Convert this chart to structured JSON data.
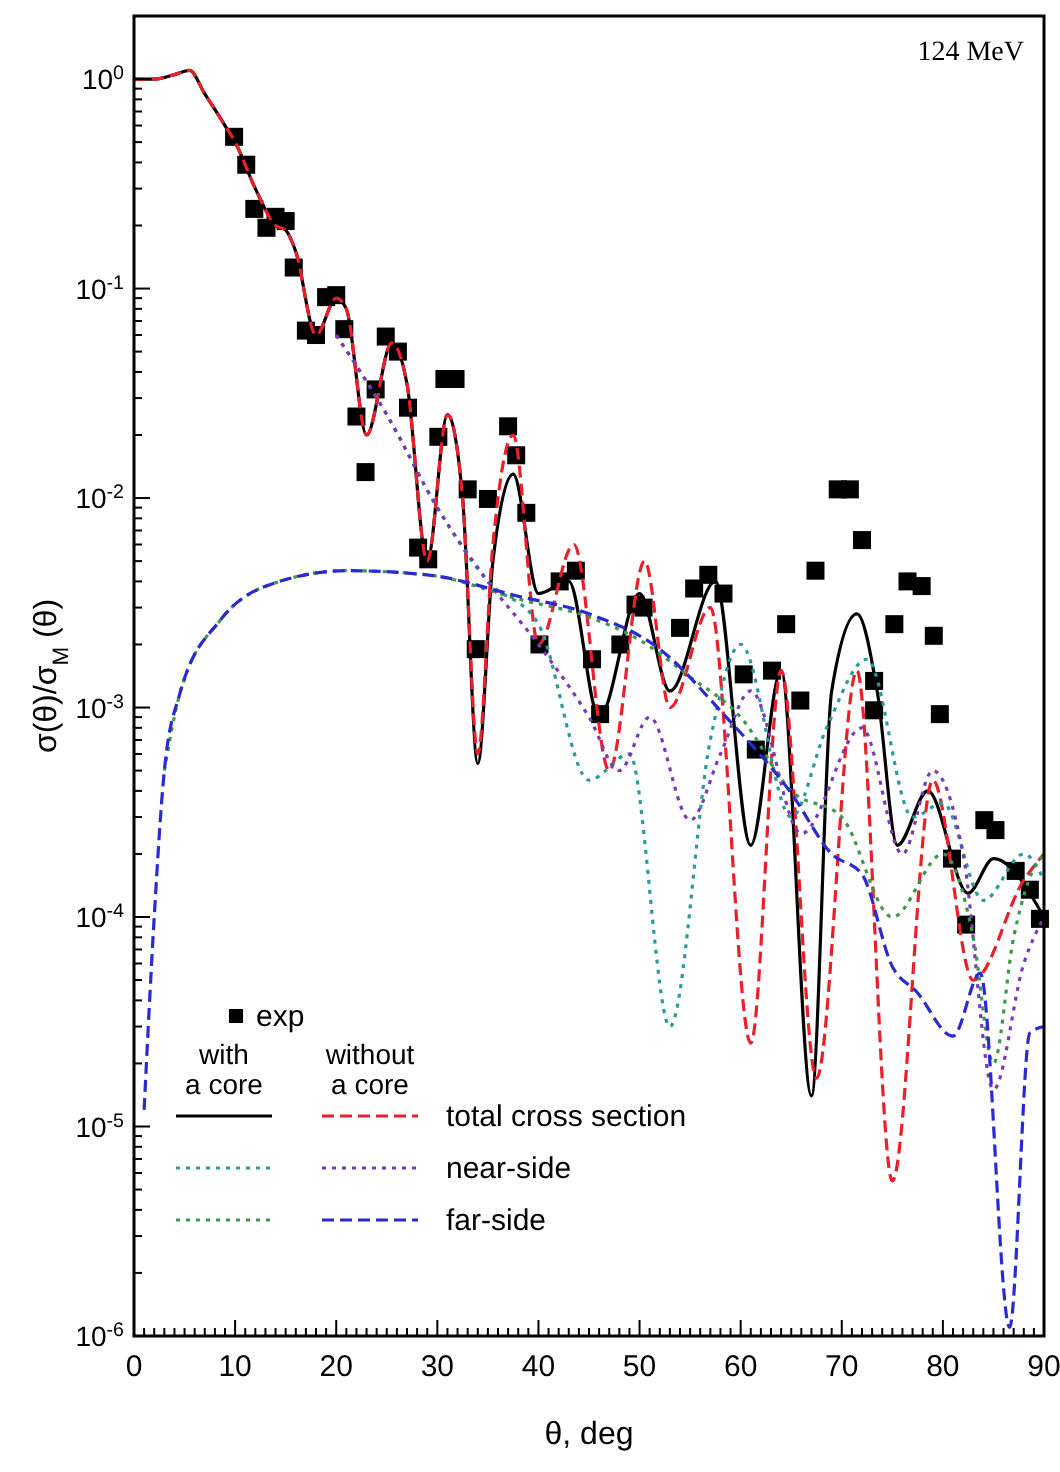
{
  "chart_data": {
    "type": "line",
    "xlabel": "θ, deg",
    "ylabel": "σ(θ)/σ$_{M}$(θ)",
    "annotations": [
      "124 MeV",
      "with a core",
      "without a core"
    ],
    "log": "y",
    "xlim": [
      0,
      90
    ],
    "ylim": [
      1e-06,
      2
    ],
    "xticks": [
      0,
      10,
      20,
      30,
      40,
      50,
      60,
      70,
      80,
      90
    ],
    "yticks": [
      {
        "value": 1e-06,
        "label": "10$^{-6}$"
      },
      {
        "value": 1e-05,
        "label": "10$^{-5}$"
      },
      {
        "value": 0.0001,
        "label": "10$^{-4}$"
      },
      {
        "value": 0.001,
        "label": "10$^{-3}$"
      },
      {
        "value": 0.01,
        "label": "10$^{-2}$"
      },
      {
        "value": 0.1,
        "label": "10$^{-1}$"
      },
      {
        "value": 1,
        "label": "10$^{0}$"
      }
    ],
    "grid": false,
    "legend": "bottom left",
    "series": [
      {
        "name": "exp",
        "type": "scatter",
        "marker": "square",
        "color": "#000000",
        "x": [
          9.9,
          11.1,
          11.9,
          13.1,
          14.0,
          15.0,
          15.8,
          17.0,
          18.0,
          19.0,
          20.0,
          20.8,
          22.0,
          22.9,
          23.9,
          24.9,
          26.1,
          27.1,
          28.1,
          29.1,
          30.1,
          30.7,
          31.8,
          33.0,
          33.8,
          35.0,
          37.0,
          37.8,
          38.8,
          40.1,
          42.1,
          43.7,
          45.3,
          46.1,
          48.1,
          49.6,
          50.4,
          54.0,
          55.4,
          56.8,
          58.3,
          60.3,
          61.5,
          63.1,
          64.5,
          65.9,
          67.4,
          69.6,
          70.8,
          72.0,
          73.2,
          73.2,
          75.2,
          76.5,
          77.9,
          79.1,
          79.7,
          80.9,
          82.3,
          84.1,
          85.2,
          87.2,
          88.6,
          89.6
        ],
        "values": [
          0.53,
          0.39,
          0.24,
          0.195,
          0.22,
          0.21,
          0.126,
          0.063,
          0.06,
          0.091,
          0.093,
          0.064,
          0.0245,
          0.0133,
          0.033,
          0.059,
          0.05,
          0.027,
          0.0058,
          0.0051,
          0.0196,
          0.037,
          0.037,
          0.011,
          0.0019,
          0.0099,
          0.022,
          0.016,
          0.0085,
          0.002,
          0.004,
          0.0045,
          0.0017,
          0.00093,
          0.002,
          0.0031,
          0.003,
          0.0024,
          0.0037,
          0.0043,
          0.0035,
          0.00144,
          0.00063,
          0.0015,
          0.0025,
          0.00108,
          0.0045,
          0.011,
          0.011,
          0.0063,
          0.00134,
          0.00097,
          0.0025,
          0.004,
          0.0038,
          0.0022,
          0.00093,
          0.00019,
          9.2e-05,
          0.00029,
          0.00026,
          0.000166,
          0.000135,
          9.8e-05
        ]
      },
      {
        "line_style": "solid",
        "color": "#000000",
        "x": [
          0,
          2,
          4,
          5.5,
          7,
          9,
          10,
          12,
          14,
          15,
          16,
          18,
          20,
          21,
          23,
          25.5,
          27,
          29,
          31,
          32.5,
          34,
          35.5,
          37.5,
          40,
          43,
          46,
          50,
          53,
          57.5,
          61,
          64,
          67,
          69,
          71.5,
          73.5,
          75.5,
          78.5,
          82.5,
          85,
          90
        ],
        "values": [
          1.0,
          1.0,
          1.05,
          1.1,
          0.85,
          0.6,
          0.5,
          0.3,
          0.2,
          0.19,
          0.15,
          0.06,
          0.09,
          0.08,
          0.02,
          0.055,
          0.035,
          0.005,
          0.025,
          0.01,
          0.00054,
          0.005,
          0.013,
          0.0035,
          0.004,
          0.0009,
          0.0035,
          0.0012,
          0.004,
          0.00022,
          0.0015,
          1.4e-05,
          0.0012,
          0.0028,
          0.0012,
          0.00022,
          0.0004,
          0.00013,
          0.00019,
          0.0001
        ]
      },
      {
        "name": "total cross section",
        "line_style": "dashed",
        "color": "#e8202a",
        "x": [
          0,
          2,
          4,
          5.5,
          7,
          9,
          10,
          12,
          14,
          15,
          16,
          18,
          20,
          21,
          23,
          25.5,
          27,
          29,
          31,
          32.5,
          34,
          35.5,
          37.5,
          40,
          43.5,
          47,
          50.5,
          53,
          57,
          61,
          64,
          67.5,
          71.5,
          75,
          79,
          83,
          88,
          90
        ],
        "values": [
          1.0,
          1.0,
          1.05,
          1.1,
          0.85,
          0.6,
          0.5,
          0.3,
          0.2,
          0.19,
          0.15,
          0.06,
          0.09,
          0.08,
          0.02,
          0.055,
          0.035,
          0.005,
          0.025,
          0.01,
          0.0006,
          0.006,
          0.02,
          0.002,
          0.006,
          0.0005,
          0.005,
          0.001,
          0.003,
          2.5e-05,
          0.0015,
          1.7e-05,
          0.0015,
          5.5e-06,
          0.00045,
          5e-05,
          0.00015,
          0.0002
        ]
      },
      {
        "line_style": "dotted",
        "color": "#2a9a9a",
        "x": [
          20,
          25,
          30,
          35,
          40,
          45,
          49,
          53,
          57,
          60,
          65,
          68.5,
          72.5,
          77,
          80,
          84,
          88,
          90
        ],
        "values": [
          0.06,
          0.025,
          0.009,
          0.004,
          0.0025,
          0.00045,
          0.0006,
          3e-05,
          0.0007,
          0.002,
          0.0003,
          0.0008,
          0.0017,
          0.0003,
          0.00035,
          0.00012,
          0.0002,
          0.00015
        ]
      },
      {
        "name": "near-side",
        "line_style": "dotted",
        "color": "#7a3ab8",
        "x": [
          20,
          25,
          30,
          35,
          40,
          45,
          48,
          51,
          55,
          58,
          61,
          66,
          72,
          76,
          79,
          82,
          85,
          88,
          90
        ],
        "values": [
          0.06,
          0.025,
          0.009,
          0.004,
          0.002,
          0.0009,
          0.0005,
          0.0009,
          0.00029,
          0.0006,
          0.0012,
          0.00025,
          0.0008,
          0.0002,
          0.0005,
          0.0002,
          1.5e-05,
          6e-05,
          0.0001
        ]
      },
      {
        "line_style": "dotted",
        "color": "#3a9a4a",
        "x": [
          3,
          4.5,
          8.5,
          14.4,
          21,
          29,
          38,
          45,
          50,
          55,
          60,
          65,
          70,
          75,
          80,
          83,
          85,
          87,
          88.5,
          90
        ],
        "values": [
          0.0005,
          0.00115,
          0.0026,
          0.004,
          0.0045,
          0.0043,
          0.0033,
          0.0027,
          0.0021,
          0.0014,
          0.0009,
          0.0004,
          0.0003,
          0.0001,
          0.0002,
          8e-05,
          2e-05,
          8e-05,
          0.00015,
          0.0002
        ]
      },
      {
        "name": "far-side",
        "line_style": "dashed",
        "color": "#2a2ad0",
        "x": [
          1,
          2,
          3,
          4.5,
          8.5,
          14.4,
          21,
          29,
          38,
          45,
          52,
          58.3,
          65,
          69,
          72,
          75,
          77.4,
          81,
          83.7,
          86.6,
          88.6,
          90
        ],
        "values": [
          1.2e-05,
          0.0001,
          0.0005,
          0.00115,
          0.0026,
          0.004,
          0.0045,
          0.0043,
          0.0034,
          0.0028,
          0.0019,
          0.00093,
          0.00039,
          0.0002,
          0.00016,
          5.8e-05,
          4.4e-05,
          2.7e-05,
          5.4e-05,
          1.1e-06,
          2.8e-05,
          3e-05
        ]
      }
    ]
  }
}
